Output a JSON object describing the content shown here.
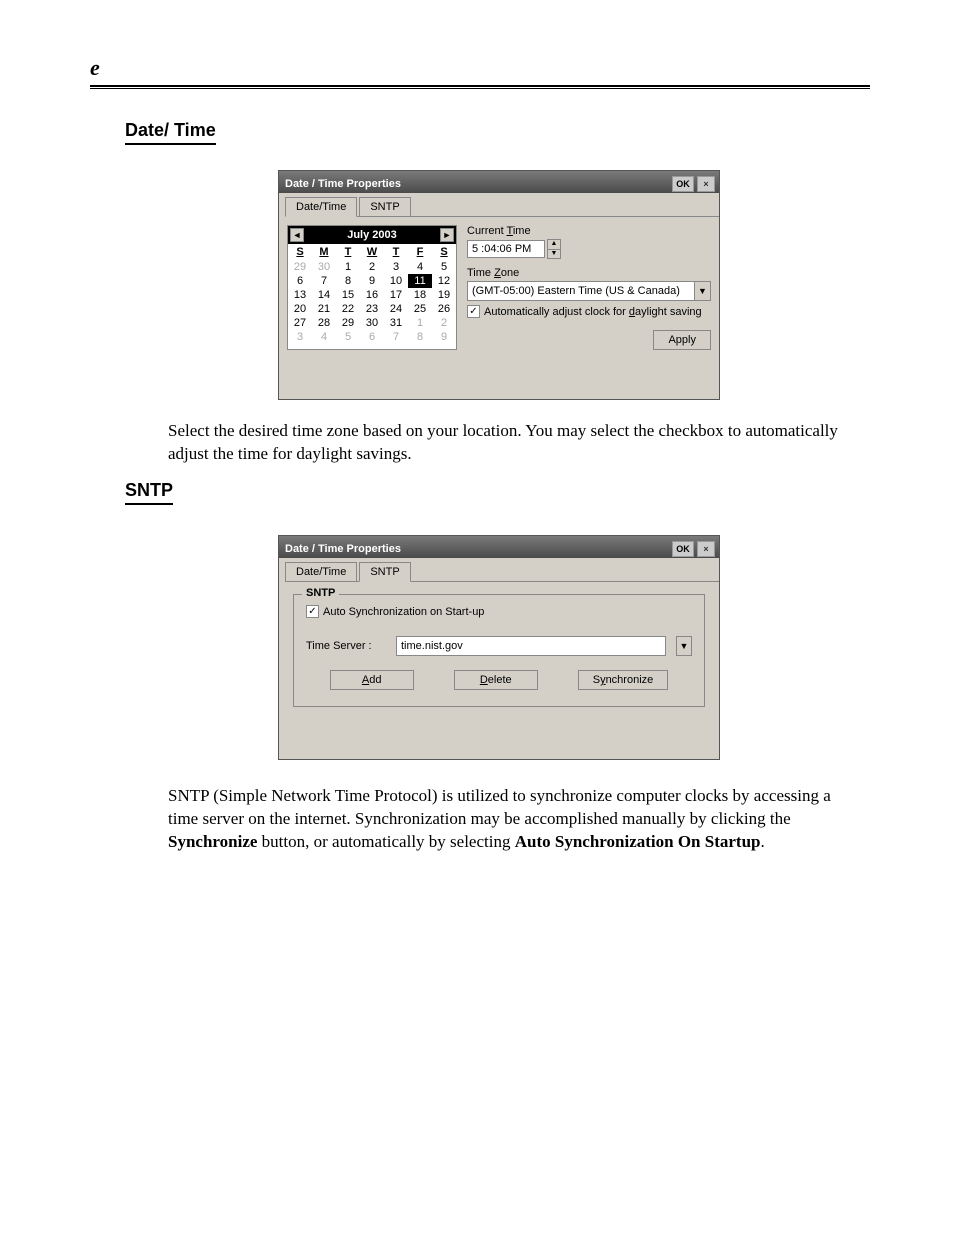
{
  "page_header": "e",
  "sections": {
    "date_heading": "Date/ Time",
    "sntp_heading": "SNTP"
  },
  "dialog1": {
    "title": "Date / Time Properties",
    "ok": "OK",
    "close": "×",
    "tabs": {
      "datetime": "Date/Time",
      "sntp": "SNTP"
    },
    "active_tab": "datetime",
    "calendar": {
      "month_label": "July 2003",
      "prev": "◄",
      "next": "►",
      "dow": [
        "S",
        "M",
        "T",
        "W",
        "T",
        "F",
        "S"
      ],
      "leading_other": [
        29,
        30
      ],
      "days": [
        1,
        2,
        3,
        4,
        5,
        6,
        7,
        8,
        9,
        10,
        11,
        12,
        13,
        14,
        15,
        16,
        17,
        18,
        19,
        20,
        21,
        22,
        23,
        24,
        25,
        26,
        27,
        28,
        29,
        30,
        31
      ],
      "trailing_other": [
        1,
        2,
        3,
        4,
        5,
        6,
        7,
        8,
        9
      ],
      "selected_day": 11
    },
    "current_time_label": "Current Time",
    "current_time_value": "5 :04:06 PM",
    "timezone_label": "Time Zone",
    "timezone_value": "(GMT-05:00) Eastern Time (US & Canada)",
    "dst_label": "Automatically adjust clock for daylight saving",
    "dst_checked": true,
    "apply": "Apply"
  },
  "text1": "Select the desired time zone based on your location. You may select the checkbox to automatically adjust the time for daylight savings.",
  "dialog2": {
    "title": "Date / Time Properties",
    "ok": "OK",
    "close": "×",
    "tabs": {
      "datetime": "Date/Time",
      "sntp": "SNTP"
    },
    "active_tab": "sntp",
    "group_label": "SNTP",
    "auto_sync_label": "Auto Synchronization on Start-up",
    "auto_sync_checked": true,
    "server_label": "Time Server :",
    "server_value": "time.nist.gov",
    "buttons": {
      "add": "Add",
      "delete": "Delete",
      "sync": "Synchronize"
    }
  },
  "text2": {
    "line": "SNTP (Simple Network Time Protocol) is utilized to synchronize computer clocks by accessing a time server on the internet. Synchronization may be accomplished manually by clicking the ",
    "bold1": "Synchronize",
    "mid": " button, or automatically by selecting ",
    "bold2": "Auto Synchronization On Startup",
    "end": "."
  }
}
